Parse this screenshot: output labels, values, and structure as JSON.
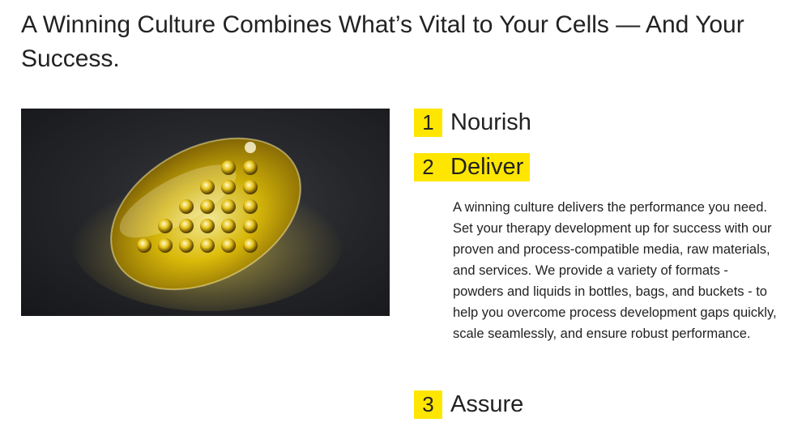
{
  "headline": "A Winning Culture Combines What’s Vital to Your Cells — And Your Success.",
  "image": {
    "alt_icon": "yellow-cell-capsule-illustration",
    "accent_color": "#ffe600"
  },
  "steps": [
    {
      "number": "1",
      "title": "Nourish",
      "expanded": false
    },
    {
      "number": "2",
      "title": "Deliver",
      "expanded": true,
      "description": "A winning culture delivers the performance you need. Set your therapy development up for success with our proven and process-compatible media, raw materials, and services. We provide a variety of formats - powders and liquids in bottles, bags, and buckets - to help you overcome process development gaps quickly, scale seamlessly, and ensure robust performance."
    },
    {
      "number": "3",
      "title": "Assure",
      "expanded": false
    }
  ]
}
